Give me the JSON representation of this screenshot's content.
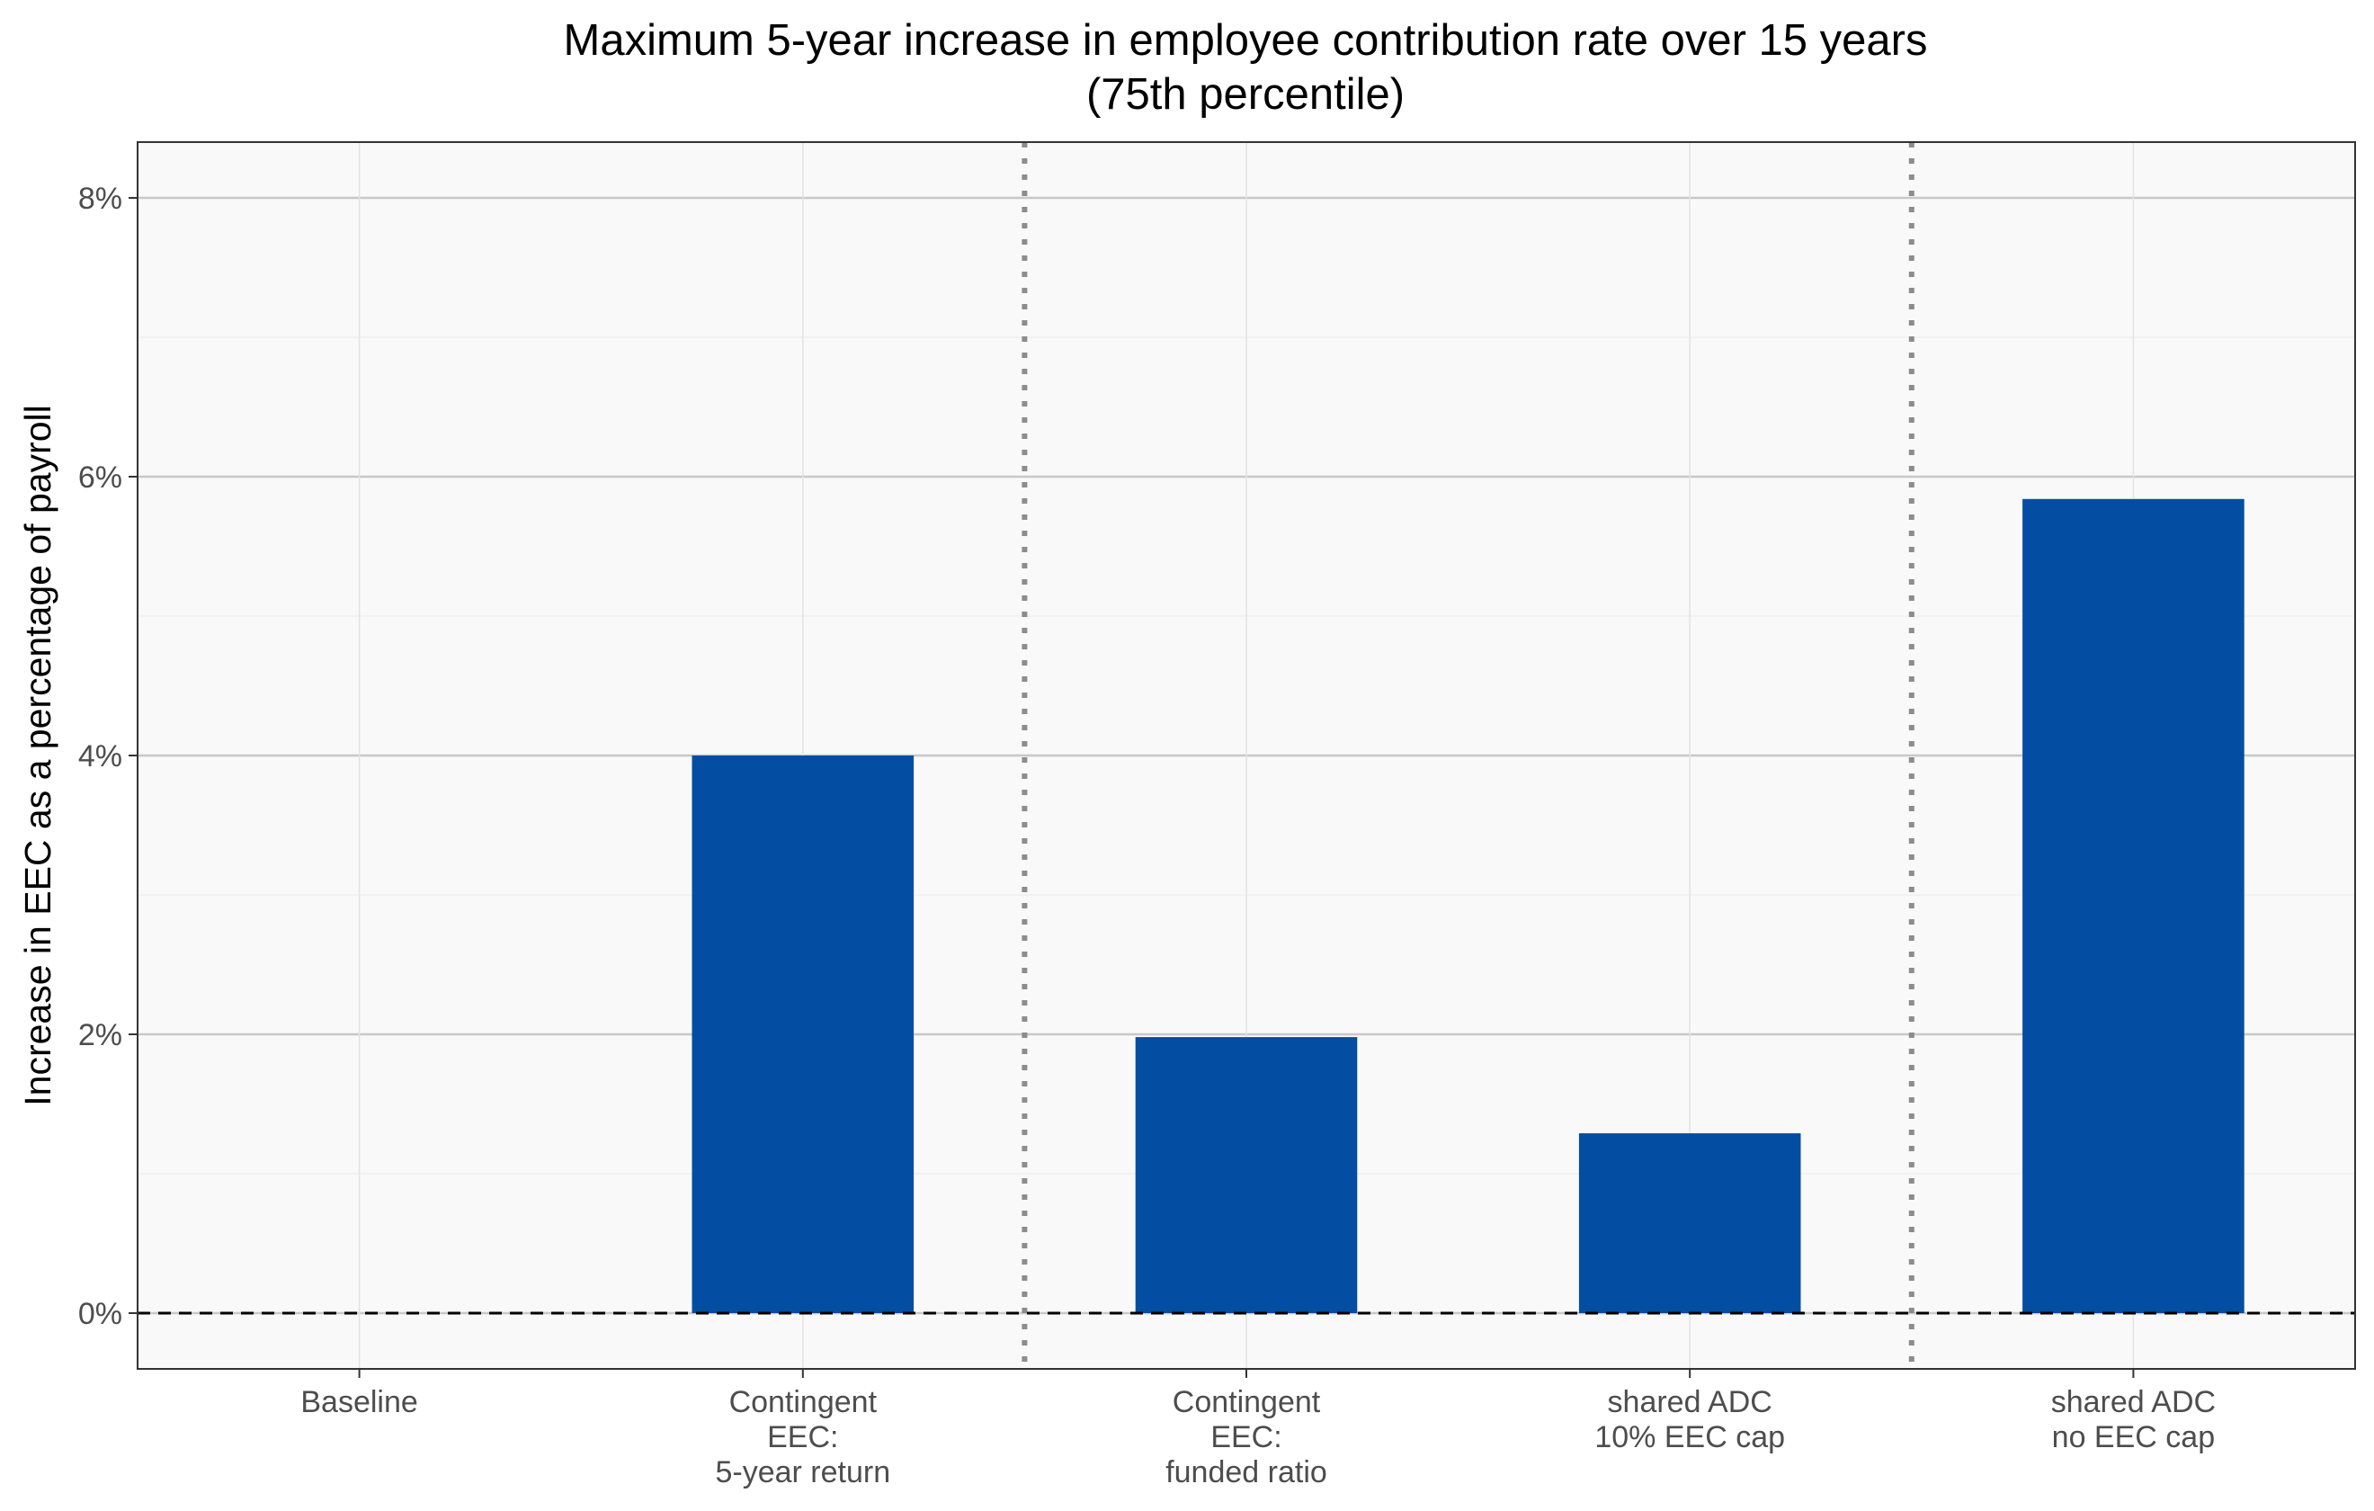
{
  "chart_data": {
    "type": "bar",
    "title": "Maximum 5-year increase in employee contribution rate over 15 years",
    "subtitle": "(75th percentile)",
    "xlabel": "",
    "ylabel": "Increase in EEC as a percentage of payroll",
    "ylim": [
      -0.4,
      8.4
    ],
    "yticks": [
      0,
      2,
      4,
      6,
      8
    ],
    "ytick_labels": [
      "0%",
      "2%",
      "4%",
      "6%",
      "8%"
    ],
    "categories": [
      [
        "Baseline"
      ],
      [
        "Contingent",
        "EEC:",
        "5-year return"
      ],
      [
        "Contingent",
        "EEC:",
        "funded ratio"
      ],
      [
        "shared ADC",
        "10% EEC cap"
      ],
      [
        "shared ADC",
        "no EEC cap"
      ]
    ],
    "values": [
      0,
      4.0,
      1.98,
      1.29,
      5.84
    ],
    "bar_color": "#034ea2",
    "reference_line": 0,
    "group_separators_after": [
      1,
      3
    ],
    "grid": true,
    "legend": "none"
  }
}
